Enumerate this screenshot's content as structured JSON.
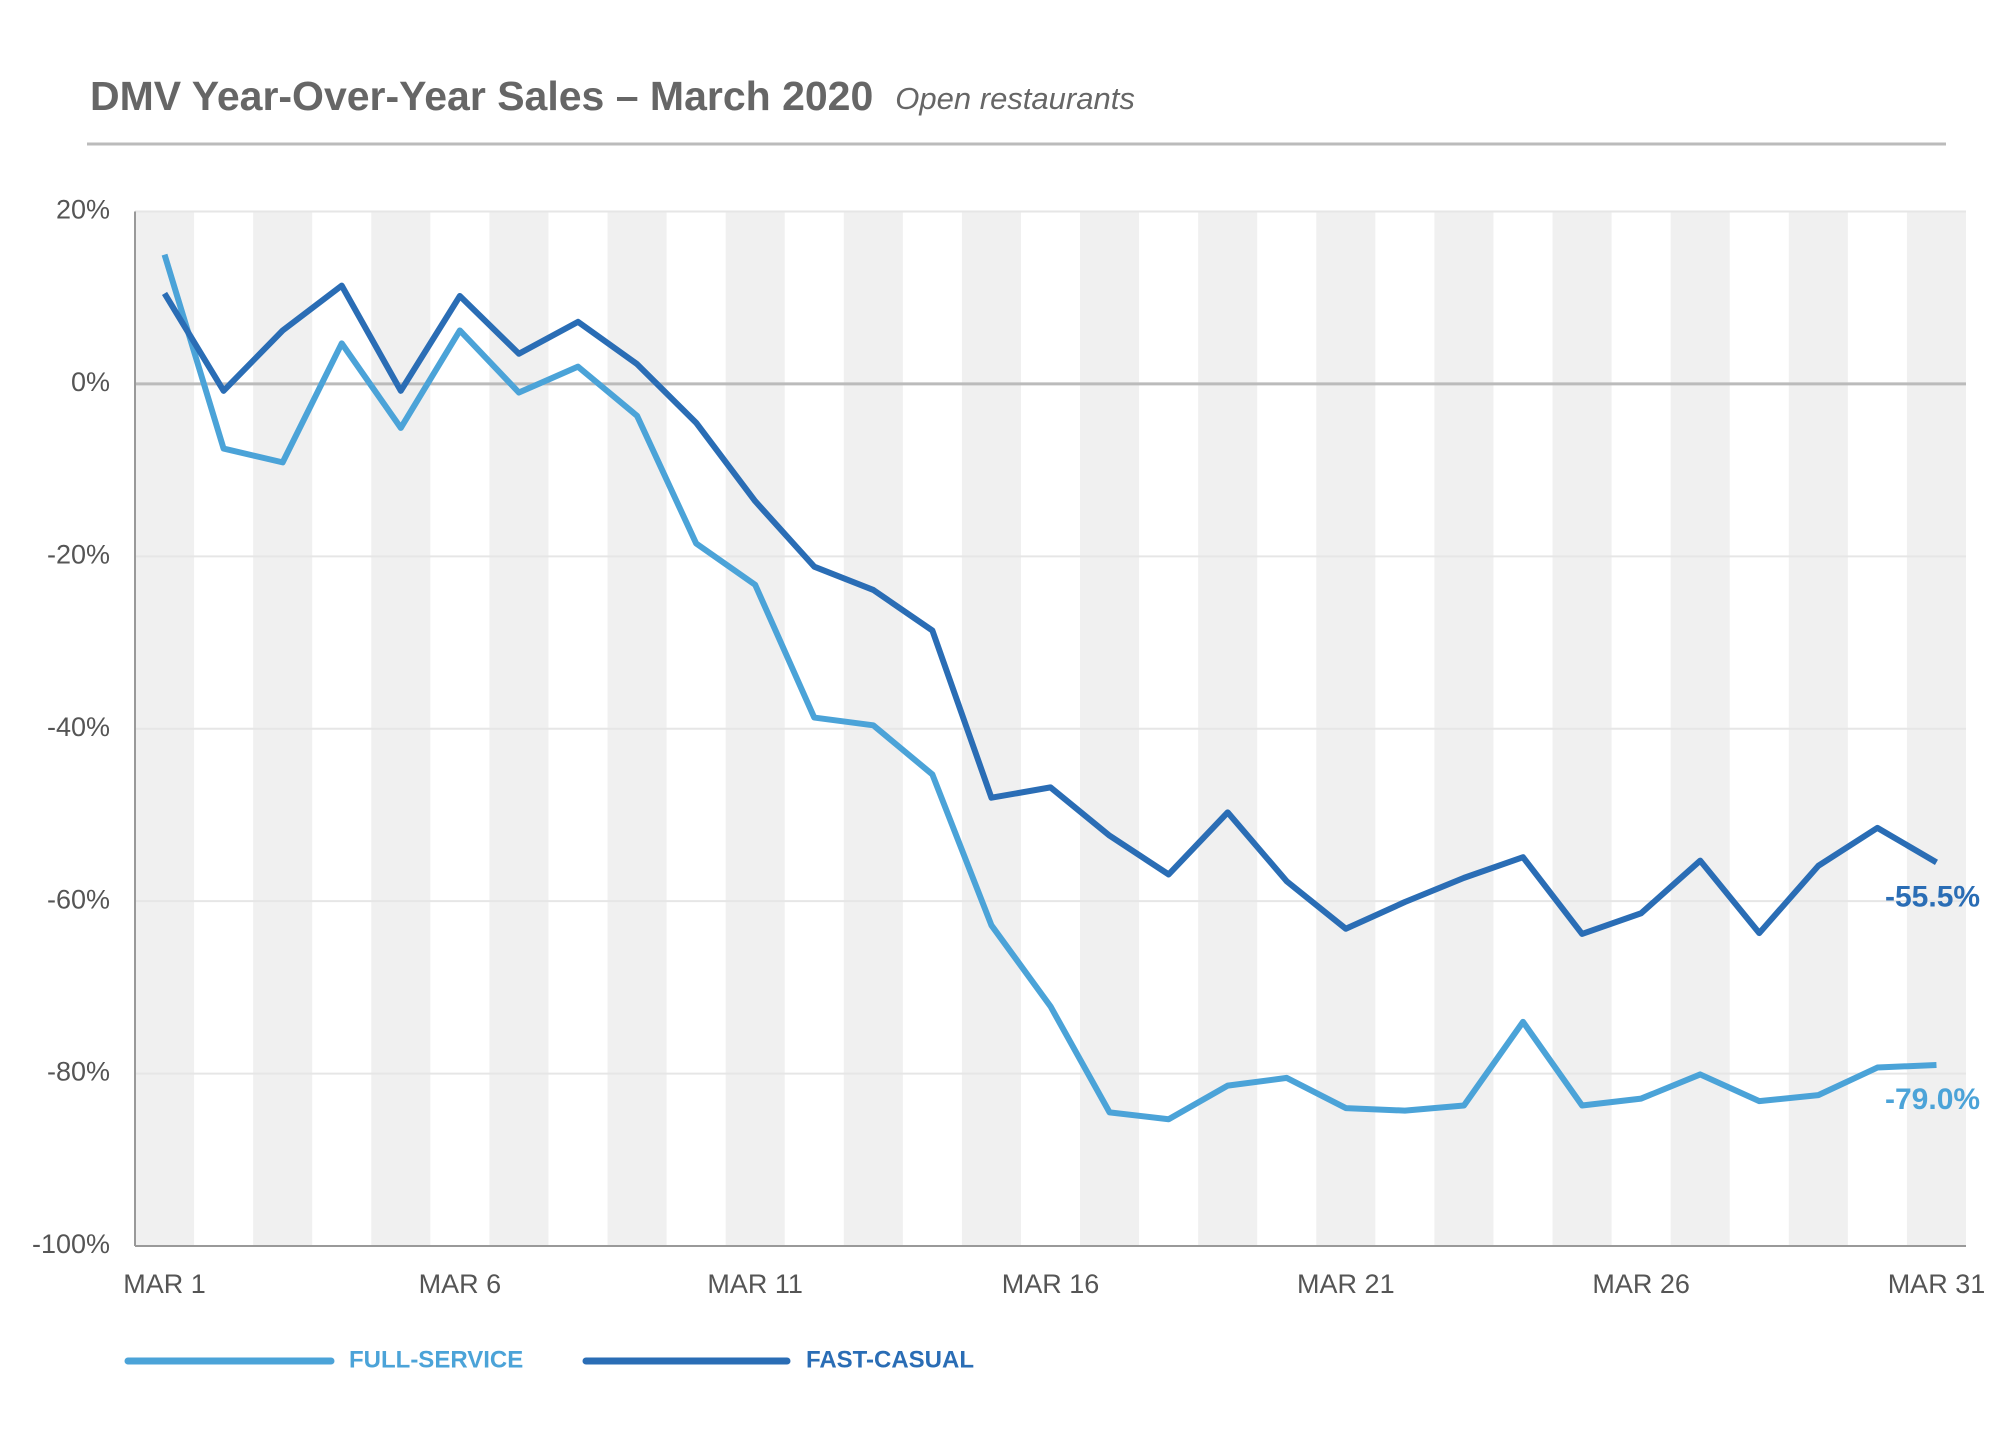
{
  "chart_data": {
    "type": "line",
    "title": "DMV Year-Over-Year Sales – March 2020",
    "subtitle": "Open restaurants",
    "categories": [
      "MAR 1",
      null,
      null,
      null,
      null,
      "MAR 6",
      null,
      null,
      null,
      null,
      "MAR 11",
      null,
      null,
      null,
      null,
      "MAR 16",
      null,
      null,
      null,
      null,
      "MAR 21",
      null,
      null,
      null,
      null,
      "MAR 26",
      null,
      null,
      null,
      null,
      "MAR 31"
    ],
    "series": [
      {
        "name": "FULL-SERVICE",
        "color": "#4ba3d8",
        "values": [
          15,
          -7.5,
          -9.1,
          4.7,
          -5.1,
          6.2,
          -1.0,
          2.0,
          -3.7,
          -18.5,
          -23.3,
          -38.7,
          -39.6,
          -45.3,
          -62.8,
          -72.2,
          -84.5,
          -85.3,
          -81.4,
          -80.5,
          -84.0,
          -84.3,
          -83.7,
          -74.0,
          -83.7,
          -82.9,
          -80.1,
          -83.2,
          -82.5,
          -79.3,
          -79.0
        ],
        "value_labels": [
          null,
          null,
          null,
          null,
          null,
          null,
          null,
          null,
          null,
          null,
          null,
          null,
          null,
          null,
          null,
          null,
          null,
          null,
          null,
          null,
          null,
          null,
          null,
          null,
          null,
          null,
          null,
          null,
          null,
          null,
          "-79.0%"
        ]
      },
      {
        "name": "FAST-CASUAL",
        "color": "#2a6db5",
        "values": [
          10.5,
          -0.8,
          6.2,
          11.4,
          -0.8,
          10.2,
          3.5,
          7.2,
          2.3,
          -4.5,
          -13.6,
          -21.2,
          -23.9,
          -28.6,
          -48.0,
          -46.8,
          -52.4,
          -56.9,
          -49.7,
          -57.7,
          -63.2,
          -60.1,
          -57.3,
          -54.9,
          -63.8,
          -61.4,
          -55.3,
          -63.7,
          -55.9,
          -51.5,
          -55.5
        ],
        "value_labels": [
          null,
          null,
          null,
          null,
          null,
          null,
          null,
          null,
          null,
          null,
          null,
          null,
          null,
          null,
          null,
          null,
          null,
          null,
          null,
          null,
          null,
          null,
          null,
          null,
          null,
          null,
          null,
          null,
          null,
          null,
          "-55.5%"
        ]
      }
    ],
    "ylim": [
      -100,
      20
    ],
    "yticks": [
      {
        "value": -100,
        "label": "-100%"
      },
      {
        "value": -80,
        "label": "-80%"
      },
      {
        "value": -60,
        "label": "-60%"
      },
      {
        "value": -40,
        "label": "-40%"
      },
      {
        "value": -20,
        "label": "-20%"
      },
      {
        "value": 0,
        "label": "0%"
      },
      {
        "value": 20,
        "label": "20%"
      }
    ],
    "grid": true
  }
}
